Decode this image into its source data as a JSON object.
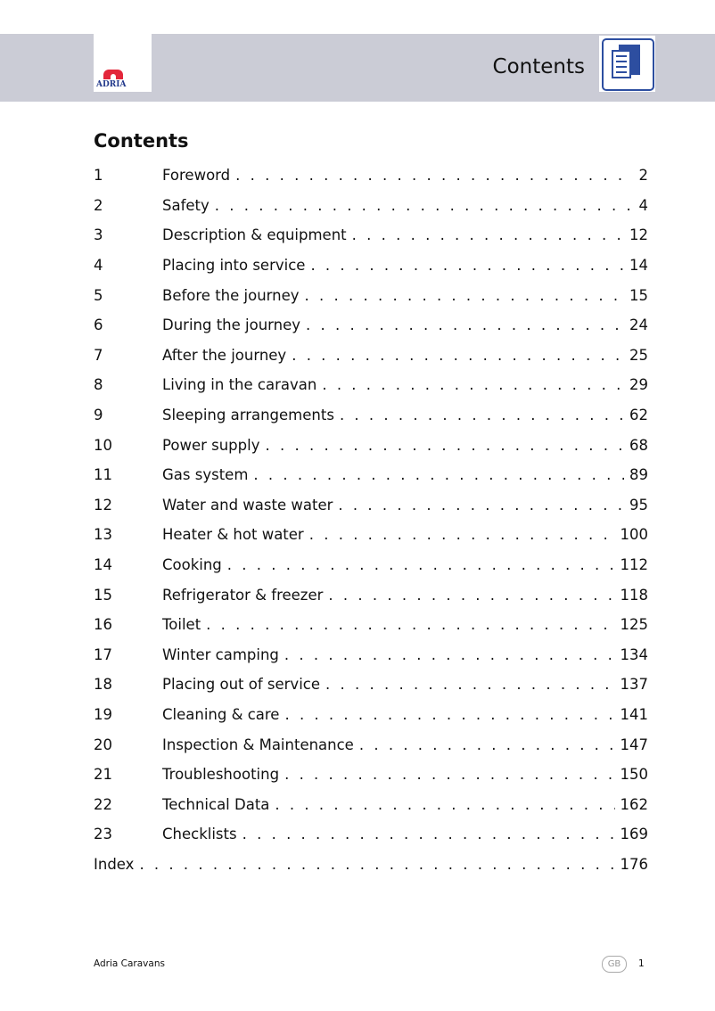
{
  "header": {
    "title": "Contents",
    "logo_text": "ADRIA",
    "icon": "document-pages-icon",
    "band_color": "#cbccd6",
    "accent": "#2d4ea0"
  },
  "heading": "Contents",
  "toc": [
    {
      "num": "1",
      "title": "Foreword",
      "page": "2"
    },
    {
      "num": "2",
      "title": "Safety",
      "page": "4"
    },
    {
      "num": "3",
      "title": "Description & equipment",
      "page": "12"
    },
    {
      "num": "4",
      "title": "Placing into service",
      "page": "14"
    },
    {
      "num": "5",
      "title": "Before the journey",
      "page": "15"
    },
    {
      "num": "6",
      "title": "During the journey",
      "page": "24"
    },
    {
      "num": "7",
      "title": "After the journey",
      "page": "25"
    },
    {
      "num": "8",
      "title": "Living in the caravan",
      "page": "29"
    },
    {
      "num": "9",
      "title": "Sleeping arrangements",
      "page": "62"
    },
    {
      "num": "10",
      "title": "Power supply",
      "page": "68"
    },
    {
      "num": "11",
      "title": "Gas system",
      "page": "89"
    },
    {
      "num": "12",
      "title": "Water and waste water",
      "page": "95"
    },
    {
      "num": "13",
      "title": "Heater & hot water",
      "page": "100"
    },
    {
      "num": "14",
      "title": "Cooking",
      "page": "112"
    },
    {
      "num": "15",
      "title": "Refrigerator & freezer",
      "page": "118"
    },
    {
      "num": "16",
      "title": "Toilet",
      "page": "125"
    },
    {
      "num": "17",
      "title": "Winter camping",
      "page": "134"
    },
    {
      "num": "18",
      "title": "Placing out of service",
      "page": "137"
    },
    {
      "num": "19",
      "title": "Cleaning & care",
      "page": "141"
    },
    {
      "num": "20",
      "title": "Inspection & Maintenance",
      "page": "147"
    },
    {
      "num": "21",
      "title": "Troubleshooting",
      "page": "150"
    },
    {
      "num": "22",
      "title": "Technical Data",
      "page": "162"
    },
    {
      "num": "23",
      "title": "Checklists",
      "page": "169"
    }
  ],
  "index": {
    "title": "Index",
    "page": "176"
  },
  "footer": {
    "left": "Adria Caravans",
    "lang": "GB",
    "page": "1"
  }
}
